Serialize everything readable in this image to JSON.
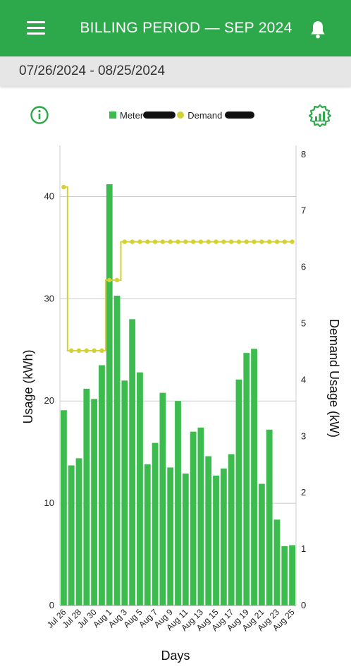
{
  "header": {
    "title": "BILLING PERIOD  —  SEP 2024",
    "menu_icon": "hamburger-menu-icon",
    "bell_icon": "bell-icon",
    "background": "#2da84a"
  },
  "date_bar": {
    "range": "07/26/2024 - 08/25/2024"
  },
  "toolbar": {
    "info_icon": "info-icon",
    "settings_icon": "chart-settings-icon"
  },
  "chart_data": {
    "type": "bar",
    "xlabel": "Days",
    "ylabel": "Usage (kWh)",
    "y2label": "Demand Usage (kW)",
    "ylim": [
      0,
      45
    ],
    "y2lim": [
      0,
      8.16
    ],
    "yticks": [
      0,
      10,
      20,
      30,
      40
    ],
    "y2ticks": [
      0,
      1,
      2,
      3,
      4,
      5,
      6,
      7,
      8
    ],
    "grid": true,
    "legend_position": "top",
    "legend": [
      {
        "label": "Meter",
        "color": "#3cbc4e",
        "kind": "bar"
      },
      {
        "label": "Demand",
        "color": "#d4d136",
        "kind": "line"
      }
    ],
    "categories": [
      "Jul 26",
      "Jul 27",
      "Jul 28",
      "Jul 29",
      "Jul 30",
      "Jul 31",
      "Aug 1",
      "Aug 2",
      "Aug 3",
      "Aug 4",
      "Aug 5",
      "Aug 6",
      "Aug 7",
      "Aug 8",
      "Aug 9",
      "Aug 10",
      "Aug 11",
      "Aug 12",
      "Aug 13",
      "Aug 14",
      "Aug 15",
      "Aug 16",
      "Aug 17",
      "Aug 18",
      "Aug 19",
      "Aug 20",
      "Aug 21",
      "Aug 22",
      "Aug 23",
      "Aug 24",
      "Aug 25"
    ],
    "tick_labels": [
      "Jul 26",
      "Jul 28",
      "Jul 30",
      "Aug 1",
      "Aug 3",
      "Aug 5",
      "Aug 7",
      "Aug 9",
      "Aug 11",
      "Aug 13",
      "Aug 15",
      "Aug 17",
      "Aug 19",
      "Aug 21",
      "Aug 23",
      "Aug 25"
    ],
    "series": [
      {
        "name": "Meter",
        "axis": "left",
        "color": "#3cbc4e",
        "values": [
          19.1,
          13.7,
          14.4,
          21.2,
          20.2,
          23.5,
          41.2,
          30.3,
          22.0,
          28.0,
          22.8,
          13.8,
          15.9,
          20.8,
          13.5,
          20.0,
          12.9,
          17.0,
          17.4,
          14.6,
          12.7,
          13.4,
          14.8,
          22.1,
          24.7,
          25.1,
          11.9,
          17.2,
          8.4,
          5.8,
          5.9
        ]
      },
      {
        "name": "Demand",
        "axis": "right",
        "color": "#d4d136",
        "values": [
          7.42,
          4.52,
          4.52,
          4.52,
          4.52,
          4.52,
          5.77,
          5.77,
          6.45,
          6.45,
          6.45,
          6.45,
          6.45,
          6.45,
          6.45,
          6.45,
          6.45,
          6.45,
          6.45,
          6.45,
          6.45,
          6.45,
          6.45,
          6.45,
          6.45,
          6.45,
          6.45,
          6.45,
          6.45,
          6.45,
          6.45
        ]
      }
    ]
  }
}
